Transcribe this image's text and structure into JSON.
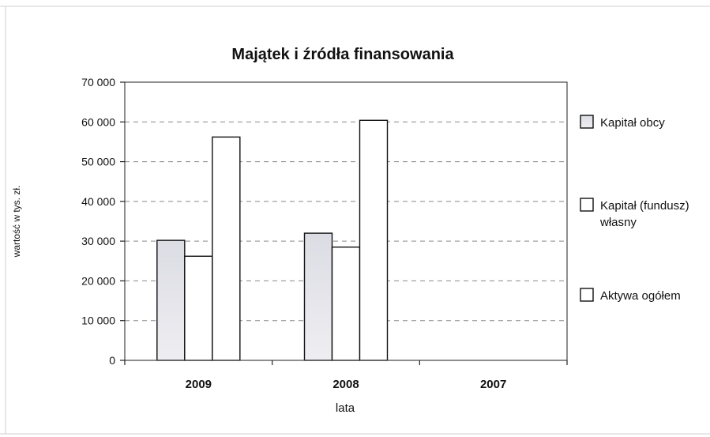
{
  "chart_data": {
    "type": "bar",
    "title": "Majątek i źródła finansowania",
    "xlabel": "lata",
    "ylabel": "wartość w tys. zł.",
    "categories": [
      "2009",
      "2008",
      "2007"
    ],
    "ylim": [
      0,
      70000
    ],
    "yticks": [
      0,
      10000,
      20000,
      30000,
      40000,
      50000,
      60000,
      70000
    ],
    "ytick_labels": [
      "0",
      "10 000",
      "20 000",
      "30 000",
      "40 000",
      "50 000",
      "60 000",
      "70 000"
    ],
    "grid": true,
    "legend_position": "right",
    "series": [
      {
        "name": "Kapitał obcy",
        "values": [
          30200,
          32000,
          null
        ],
        "color": "#e6e6ec"
      },
      {
        "name": "Kapitał (fundusz) własny",
        "legend_lines": [
          "Kapitał (fundusz)",
          "własny"
        ],
        "values": [
          26200,
          28500,
          null
        ],
        "color": "#ffffff"
      },
      {
        "name": "Aktywa ogółem",
        "values": [
          56200,
          60400,
          null
        ],
        "color": "#ffffff"
      }
    ]
  }
}
